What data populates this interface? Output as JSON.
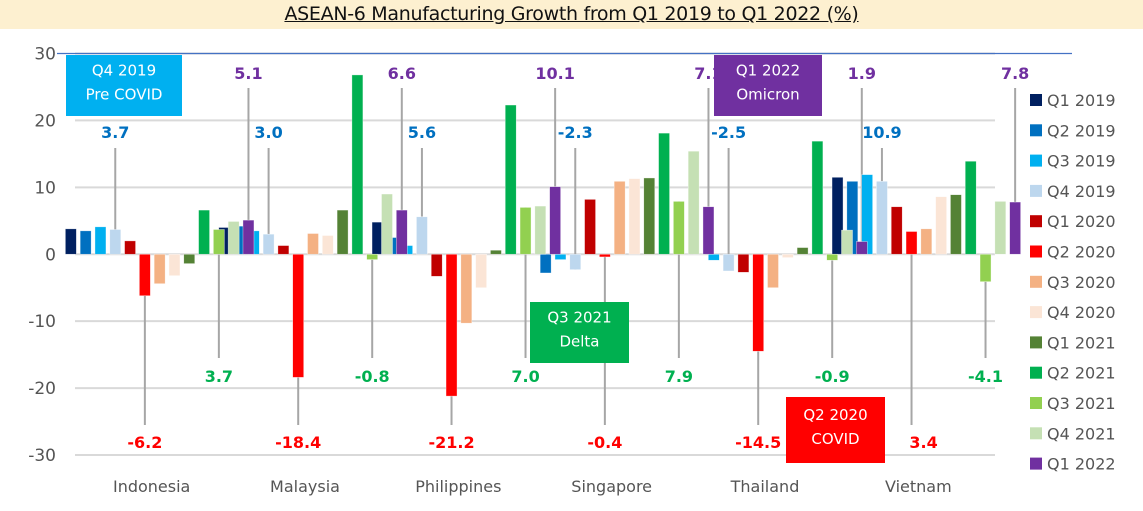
{
  "chart_data": {
    "type": "bar",
    "title": "ASEAN-6 Manufacturing Growth from Q1 2019 to Q1 2022 (%)",
    "xlabel": "",
    "ylabel": "",
    "ylim": [
      -30,
      30
    ],
    "yticks": [
      30,
      20,
      10,
      0,
      -10,
      -20,
      -30
    ],
    "grid": true,
    "legend_position": "right",
    "categories": [
      "Indonesia",
      "Malaysia",
      "Philippines",
      "Singapore",
      "Thailand",
      "Vietnam"
    ],
    "series": [
      {
        "name": "Q1 2019",
        "color": "#002060",
        "values": [
          3.8,
          4.0,
          4.8,
          0.0,
          0.0,
          11.5
        ]
      },
      {
        "name": "Q2 2019",
        "color": "#0070c0",
        "values": [
          3.5,
          4.2,
          2.5,
          -2.8,
          0.0,
          10.9
        ]
      },
      {
        "name": "Q3 2019",
        "color": "#00b0f0",
        "values": [
          4.1,
          3.5,
          1.3,
          -0.8,
          -0.9,
          11.9
        ]
      },
      {
        "name": "Q4 2019",
        "color": "#bdd7ee",
        "values": [
          3.7,
          3.0,
          5.6,
          -2.3,
          -2.5,
          10.9
        ]
      },
      {
        "name": "Q1 2020",
        "color": "#c00000",
        "values": [
          2.0,
          1.3,
          -3.3,
          8.2,
          -2.7,
          7.1
        ]
      },
      {
        "name": "Q2 2020",
        "color": "#ff0000",
        "values": [
          -6.2,
          -18.4,
          -21.2,
          -0.4,
          -14.5,
          3.4
        ]
      },
      {
        "name": "Q3 2020",
        "color": "#f4b183",
        "values": [
          -4.4,
          3.1,
          -10.3,
          10.9,
          -5.0,
          3.8
        ]
      },
      {
        "name": "Q4 2020",
        "color": "#fbe5d6",
        "values": [
          -3.2,
          2.8,
          -5.0,
          11.3,
          -0.5,
          8.6
        ]
      },
      {
        "name": "Q1 2021",
        "color": "#548235",
        "values": [
          -1.4,
          6.6,
          0.6,
          11.4,
          1.0,
          8.9
        ]
      },
      {
        "name": "Q2 2021",
        "color": "#00b050",
        "values": [
          6.6,
          26.8,
          22.3,
          18.1,
          16.9,
          13.9
        ]
      },
      {
        "name": "Q3 2021",
        "color": "#92d050",
        "values": [
          3.7,
          -0.8,
          7.0,
          7.9,
          -0.9,
          -4.1
        ]
      },
      {
        "name": "Q4 2021",
        "color": "#c5e0b4",
        "values": [
          4.9,
          9.0,
          7.2,
          15.4,
          3.6,
          7.9
        ]
      },
      {
        "name": "Q1 2022",
        "color": "#7030a0",
        "values": [
          5.1,
          6.6,
          10.1,
          7.1,
          1.9,
          7.8
        ]
      }
    ],
    "callout_labels": [
      {
        "series": "Q4 2019",
        "color": "#0070c0",
        "position": "top",
        "labels": [
          "3.7",
          "3.0",
          "5.6",
          "-2.3",
          "-2.5",
          "10.9"
        ]
      },
      {
        "series": "Q1 2022",
        "color": "#7030a0",
        "position": "top",
        "labels": [
          "5.1",
          "6.6",
          "10.1",
          "7.1",
          "1.9",
          "7.8"
        ]
      },
      {
        "series": "Q3 2021",
        "color": "#00b050",
        "position": "bottom",
        "labels": [
          "3.7",
          "-0.8",
          "7.0",
          "7.9",
          "-0.9",
          "-4.1"
        ]
      },
      {
        "series": "Q2 2020",
        "color": "#ff0000",
        "position": "bottom",
        "labels": [
          "-6.2",
          "-18.4",
          "-21.2",
          "-0.4",
          "-14.5",
          "3.4"
        ]
      }
    ],
    "annotations": [
      {
        "id": "pre-covid",
        "lines": [
          "Q4 2019",
          "Pre COVID"
        ],
        "color": "#00b0f0"
      },
      {
        "id": "omicron",
        "lines": [
          "Q1 2022",
          "Omicron"
        ],
        "color": "#7030a0"
      },
      {
        "id": "delta",
        "lines": [
          "Q3 2021",
          "Delta"
        ],
        "color": "#00b050"
      },
      {
        "id": "covid",
        "lines": [
          "Q2 2020",
          "COVID"
        ],
        "color": "#ff0000"
      }
    ]
  }
}
